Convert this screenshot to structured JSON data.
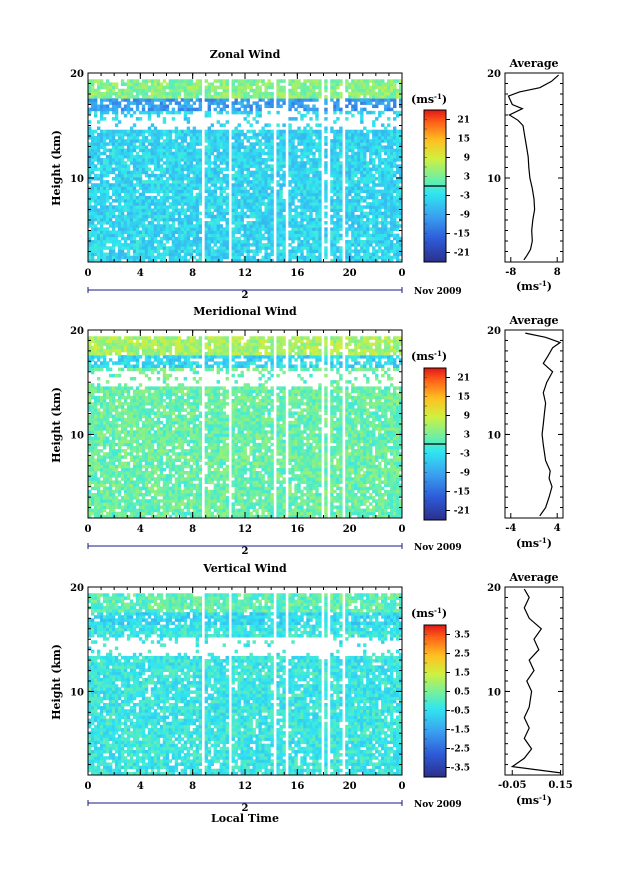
{
  "figure": {
    "bottom_xlabel": "Local Time"
  },
  "chart_data": [
    {
      "type": "heatmap",
      "title": "Zonal Wind",
      "ylabel": "Height (km)",
      "x_ticks": [
        "0",
        "4",
        "8",
        "12",
        "16",
        "20",
        "0"
      ],
      "xlim": [
        0,
        24
      ],
      "y_ticks": [
        "10",
        "20"
      ],
      "ylim": [
        2,
        20
      ],
      "day_label": "2",
      "date_label": "Nov 2009",
      "colorbar": {
        "unit_label": "(ms",
        "unit_exp": "-1",
        "ticks": [
          "21",
          "15",
          "9",
          "3",
          "-3",
          "-9",
          "-15",
          "-21"
        ],
        "range": [
          -24,
          24
        ],
        "zero_line": 0
      },
      "dominant_value": -4,
      "upper_band_value": 4,
      "jet_value": -10,
      "average": {
        "title": "Average",
        "xlabel": "(ms",
        "xlabel_exp": "-1",
        "x_ticks": [
          "-8",
          "8"
        ],
        "xlim": [
          -10,
          10
        ],
        "y_ticks": [
          "10",
          "20"
        ],
        "ylim": [
          2,
          20
        ],
        "profile": [
          [
            -3.5,
            2.2
          ],
          [
            -2.5,
            2.6
          ],
          [
            -1.2,
            3.2
          ],
          [
            -0.6,
            4.0
          ],
          [
            -0.8,
            5.0
          ],
          [
            -0.4,
            6.0
          ],
          [
            0.2,
            7.0
          ],
          [
            0.0,
            8.0
          ],
          [
            -0.6,
            9.0
          ],
          [
            -1.4,
            10.0
          ],
          [
            -1.8,
            11.0
          ],
          [
            -2.0,
            12.0
          ],
          [
            -2.6,
            13.0
          ],
          [
            -3.2,
            14.0
          ],
          [
            -3.8,
            15.0
          ],
          [
            -5.5,
            15.5
          ],
          [
            -8.5,
            16.0
          ],
          [
            -4.0,
            16.6
          ],
          [
            -7.5,
            17.0
          ],
          [
            -8.8,
            17.8
          ],
          [
            -5.0,
            18.2
          ],
          [
            2.0,
            18.6
          ],
          [
            6.0,
            19.2
          ],
          [
            8.5,
            19.8
          ]
        ]
      }
    },
    {
      "type": "heatmap",
      "title": "Meridional Wind",
      "ylabel": "Height (km)",
      "x_ticks": [
        "0",
        "4",
        "8",
        "12",
        "16",
        "20",
        "0"
      ],
      "xlim": [
        0,
        24
      ],
      "y_ticks": [
        "10",
        "20"
      ],
      "ylim": [
        2,
        20
      ],
      "day_label": "2",
      "date_label": "Nov 2009",
      "colorbar": {
        "unit_label": "(ms",
        "unit_exp": "-1",
        "ticks": [
          "21",
          "15",
          "9",
          "3",
          "-3",
          "-9",
          "-15",
          "-21"
        ],
        "range": [
          -24,
          24
        ],
        "zero_line": 0
      },
      "dominant_value": 2,
      "upper_band_value": 6,
      "jet_value": -4,
      "average": {
        "title": "Average",
        "xlabel": "(ms",
        "xlabel_exp": "-1",
        "x_ticks": [
          "-4",
          "4"
        ],
        "xlim": [
          -5,
          5
        ],
        "y_ticks": [
          "10",
          "20"
        ],
        "ylim": [
          2,
          20
        ],
        "profile": [
          [
            1.0,
            2.2
          ],
          [
            2.0,
            3.0
          ],
          [
            2.6,
            4.0
          ],
          [
            3.1,
            5.0
          ],
          [
            2.6,
            5.8
          ],
          [
            2.8,
            6.5
          ],
          [
            2.0,
            7.5
          ],
          [
            1.6,
            9.0
          ],
          [
            1.4,
            10.0
          ],
          [
            1.6,
            11.0
          ],
          [
            1.8,
            12.0
          ],
          [
            2.0,
            13.0
          ],
          [
            1.6,
            14.0
          ],
          [
            2.2,
            15.0
          ],
          [
            3.2,
            16.0
          ],
          [
            1.6,
            16.8
          ],
          [
            2.4,
            17.5
          ],
          [
            3.2,
            18.3
          ],
          [
            4.5,
            18.8
          ],
          [
            2.0,
            19.3
          ],
          [
            -1.5,
            19.7
          ]
        ]
      }
    },
    {
      "type": "heatmap",
      "title": "Vertical Wind",
      "ylabel": "Height (km)",
      "x_ticks": [
        "0",
        "4",
        "8",
        "12",
        "16",
        "20",
        "0"
      ],
      "xlim": [
        0,
        24
      ],
      "y_ticks": [
        "10",
        "20"
      ],
      "ylim": [
        2,
        20
      ],
      "day_label": "2",
      "date_label": "Nov 2009",
      "colorbar": {
        "unit_label": "(ms",
        "unit_exp": "-1",
        "ticks": [
          "3.5",
          "2.5",
          "1.5",
          "0.5",
          "-0.5",
          "-1.5",
          "-2.5",
          "-3.5"
        ],
        "range": [
          -4,
          4
        ],
        "zero_line": null
      },
      "dominant_value": -0.3,
      "upper_band_value": 0.2,
      "jet_value": -0.6,
      "average": {
        "title": "Average",
        "xlabel": "(ms",
        "xlabel_exp": "-1",
        "x_ticks": [
          "-0.05",
          "0.15"
        ],
        "xlim": [
          -0.08,
          0.16
        ],
        "y_ticks": [
          "10",
          "20"
        ],
        "ylim": [
          2,
          20
        ],
        "profile": [
          [
            0.15,
            2.2
          ],
          [
            -0.05,
            2.8
          ],
          [
            0.0,
            3.6
          ],
          [
            0.03,
            4.5
          ],
          [
            0.0,
            5.5
          ],
          [
            0.02,
            6.5
          ],
          [
            0.0,
            7.5
          ],
          [
            0.02,
            8.5
          ],
          [
            0.03,
            10.0
          ],
          [
            0.01,
            11.0
          ],
          [
            0.04,
            12.0
          ],
          [
            0.02,
            13.0
          ],
          [
            0.06,
            14.0
          ],
          [
            0.04,
            15.0
          ],
          [
            0.07,
            16.0
          ],
          [
            0.02,
            17.0
          ],
          [
            0.0,
            18.0
          ],
          [
            0.02,
            19.0
          ],
          [
            0.0,
            19.8
          ]
        ]
      }
    }
  ]
}
